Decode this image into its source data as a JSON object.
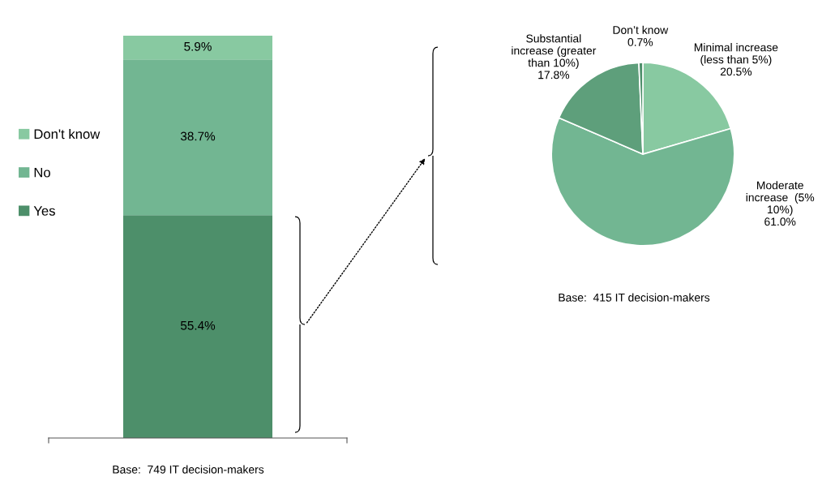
{
  "chart_data": [
    {
      "type": "bar",
      "stacked": true,
      "categories": [
        null
      ],
      "legend": "left",
      "annotations": [
        "Base:  749 IT decision-makers"
      ],
      "series": [
        {
          "name": "Yes",
          "color": "#4d8f6a",
          "values": [
            55.4
          ],
          "value_labels": [
            "55.4%"
          ]
        },
        {
          "name": "No",
          "color": "#72b692",
          "values": [
            38.7
          ],
          "value_labels": [
            "38.7%"
          ]
        },
        {
          "name": "Don't know",
          "color": "#88c9a1",
          "values": [
            5.9
          ],
          "value_labels": [
            "5.9%"
          ]
        }
      ]
    },
    {
      "type": "pie",
      "categories": [
        "Minimal increase\n(less than 5%)",
        "Moderate\nincrease  (5%\n10%)",
        "Substantial\nincrease (greater\nthan 10%)",
        "Don’t know"
      ],
      "values": [
        20.5,
        61.0,
        17.8,
        0.7
      ],
      "value_labels": [
        "20.5%",
        "61.0%",
        "17.8%",
        "0.7%"
      ],
      "colors": [
        "#88c9a1",
        "#72b692",
        "#5e9f7b",
        "#4d8f6a"
      ],
      "annotations": [
        "Base:  415 IT decision-makers"
      ]
    }
  ]
}
